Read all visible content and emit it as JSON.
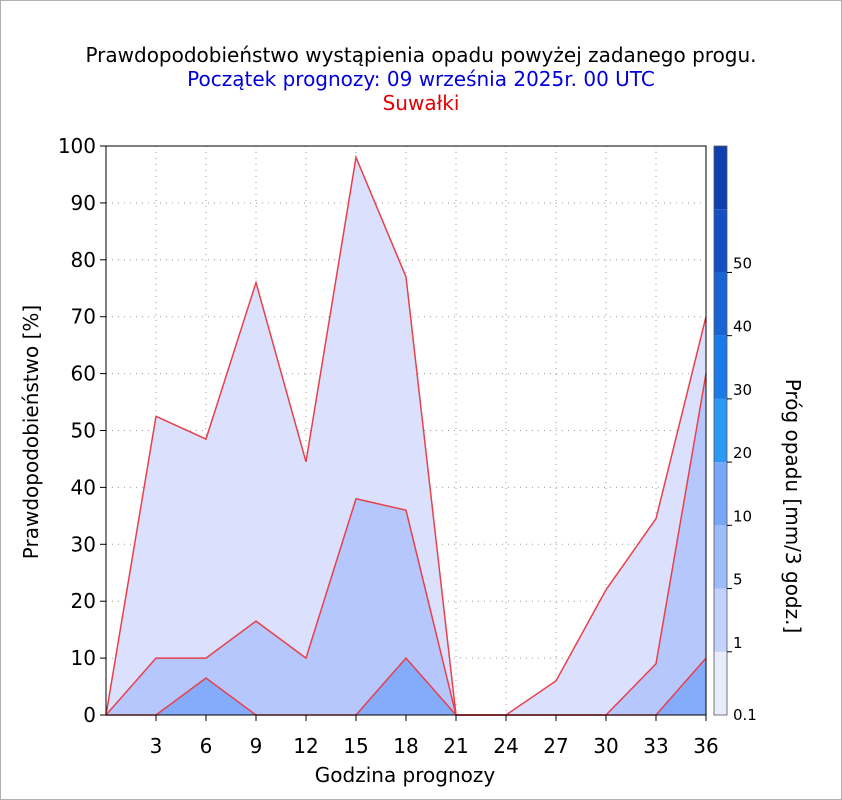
{
  "title": {
    "line1": "Prawdopodobieństwo wystąpienia opadu powyżej zadanego progu.",
    "line2": "Początek prognozy: 09 września 2025r. 00 UTC",
    "line3": "Suwałki"
  },
  "colors": {
    "title_line2": "#0000dd",
    "title_line3": "#e00000",
    "series_outline": "#e8404a"
  },
  "chart_data": {
    "type": "area",
    "xlabel": "Godzina prognozy",
    "ylabel": "Prawdopodobieństwo [%]",
    "colorbar_label": "Próg opadu [mm/3 godz.]",
    "x": [
      0,
      3,
      6,
      9,
      12,
      15,
      18,
      21,
      24,
      27,
      30,
      33,
      36
    ],
    "xticks": [
      "3",
      "6",
      "9",
      "12",
      "15",
      "18",
      "21",
      "24",
      "27",
      "30",
      "33",
      "36"
    ],
    "xlim": [
      0,
      36
    ],
    "ylim": [
      0,
      100
    ],
    "yticks": [
      "0",
      "10",
      "20",
      "30",
      "40",
      "50",
      "60",
      "70",
      "80",
      "90",
      "100"
    ],
    "grid": true,
    "series": [
      {
        "threshold": 0.1,
        "color": "#dbe1fc",
        "values": [
          0,
          52.5,
          48.5,
          76,
          44.5,
          98,
          77,
          0,
          0,
          6,
          22,
          34.5,
          70
        ]
      },
      {
        "threshold": 1,
        "color": "#b5c7fc",
        "values": [
          0,
          10,
          10,
          16.5,
          10,
          38,
          36,
          0,
          0,
          0,
          0,
          9,
          60
        ]
      },
      {
        "threshold": 5,
        "color": "#84acfa",
        "values": [
          0,
          0,
          6.5,
          0,
          0,
          0,
          10,
          0,
          0,
          0,
          0,
          0,
          10
        ]
      }
    ],
    "colorbar": {
      "labels": [
        "0.1",
        "1",
        "5",
        "10",
        "20",
        "30",
        "40",
        "50"
      ],
      "segments": [
        {
          "from": 0.1,
          "to": 1,
          "color": "#e8ecfd"
        },
        {
          "from": 1,
          "to": 5,
          "color": "#c3d2fc"
        },
        {
          "from": 5,
          "to": 10,
          "color": "#9dbcfb"
        },
        {
          "from": 10,
          "to": 20,
          "color": "#78a6f8"
        },
        {
          "from": 20,
          "to": 30,
          "color": "#2b9af5"
        },
        {
          "from": 30,
          "to": 40,
          "color": "#1c7ae8"
        },
        {
          "from": 40,
          "to": 50,
          "color": "#1864d6"
        },
        {
          "from": 50,
          "to": 60,
          "color": "#154fc4"
        },
        {
          "from": 60,
          "to": 70,
          "color": "#103fae"
        }
      ]
    }
  }
}
